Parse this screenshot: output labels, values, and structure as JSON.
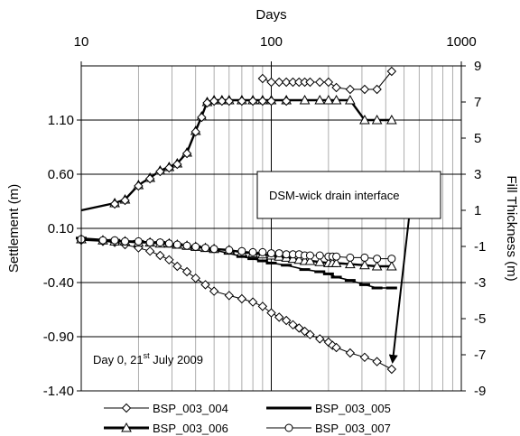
{
  "chart_data": {
    "type": "line",
    "x_scale": "log",
    "top_axis": {
      "label": "Days",
      "ticks": [
        10,
        100,
        1000
      ],
      "range": [
        10,
        1000
      ]
    },
    "left_axis": {
      "label": "Settlement (m)",
      "ticks": [
        "1.10",
        "0.60",
        "0.10",
        "-0.40",
        "-0.90",
        "-1.40"
      ],
      "range": [
        -1.4,
        1.6
      ]
    },
    "right_axis": {
      "label": "Fill Thickness (m)",
      "ticks": [
        "9",
        "7",
        "5",
        "3",
        "1",
        "-1",
        "-3",
        "-5",
        "-7",
        "-9"
      ],
      "range": [
        -9,
        9
      ]
    },
    "grid": true,
    "annotation": {
      "text": "DSM-wick drain interface",
      "arrow_to": [
        430,
        -1.2
      ]
    },
    "day_note": {
      "prefix": "Day 0, 21",
      "sup": "st",
      "suffix": " July 2009"
    },
    "legend_position": "bottom",
    "colors": {
      "line": "#000000",
      "background": "#ffffff"
    },
    "fill_series": {
      "x": [
        10,
        15,
        17,
        20,
        23,
        26,
        29,
        32,
        36,
        40,
        43,
        46,
        50,
        55,
        60,
        70,
        80,
        90,
        100,
        120,
        150,
        180,
        200,
        220,
        260,
        310,
        360,
        430
      ],
      "y_fill": [
        1.0,
        1.4,
        1.6,
        2.4,
        2.8,
        3.2,
        3.4,
        3.6,
        4.2,
        5.4,
        6.2,
        7.0,
        7.1,
        7.1,
        7.1,
        7.1,
        7.1,
        7.1,
        7.1,
        7.1,
        7.1,
        7.1,
        7.1,
        7.1,
        7.1,
        6.0,
        6.0,
        6.0
      ]
    },
    "fill_high": {
      "x": [
        90,
        100,
        110,
        120,
        130,
        140,
        150,
        160,
        180,
        200,
        220,
        260,
        310,
        360,
        430
      ],
      "y_fill": [
        8.3,
        8.1,
        8.1,
        8.1,
        8.1,
        8.1,
        8.1,
        8.1,
        8.1,
        8.1,
        7.8,
        7.7,
        7.7,
        7.7,
        8.7
      ]
    },
    "series": [
      {
        "name": "BSP_003_004",
        "marker": "diamond",
        "x": [
          10,
          13,
          15,
          17,
          20,
          23,
          26,
          29,
          32,
          36,
          40,
          45,
          50,
          60,
          70,
          80,
          90,
          100,
          110,
          120,
          130,
          140,
          150,
          160,
          180,
          200,
          210,
          220,
          260,
          310,
          360,
          430
        ],
        "y": [
          -0.01,
          -0.02,
          -0.03,
          -0.05,
          -0.08,
          -0.11,
          -0.15,
          -0.19,
          -0.25,
          -0.3,
          -0.36,
          -0.42,
          -0.48,
          -0.52,
          -0.55,
          -0.58,
          -0.62,
          -0.68,
          -0.72,
          -0.75,
          -0.79,
          -0.82,
          -0.85,
          -0.88,
          -0.92,
          -0.95,
          -0.98,
          -1.0,
          -1.05,
          -1.09,
          -1.13,
          -1.2
        ]
      },
      {
        "name": "BSP_003_005",
        "marker": "dash",
        "x": [
          10,
          15,
          20,
          26,
          32,
          40,
          50,
          60,
          70,
          80,
          90,
          100,
          120,
          150,
          180,
          200,
          220,
          260,
          310,
          360,
          430
        ],
        "y": [
          0.01,
          -0.01,
          -0.02,
          -0.03,
          -0.05,
          -0.07,
          -0.1,
          -0.13,
          -0.16,
          -0.18,
          -0.2,
          -0.22,
          -0.24,
          -0.28,
          -0.3,
          -0.32,
          -0.35,
          -0.38,
          -0.42,
          -0.45,
          -0.45
        ]
      },
      {
        "name": "BSP_003_006",
        "marker": "triangle",
        "x": [
          10,
          13,
          15,
          17,
          20,
          23,
          26,
          29,
          32,
          36,
          40,
          45,
          50,
          60,
          70,
          80,
          90,
          100,
          110,
          120,
          130,
          140,
          150,
          160,
          180,
          200,
          210,
          220,
          260,
          310,
          360,
          430
        ],
        "y": [
          0.0,
          -0.01,
          -0.02,
          -0.02,
          -0.03,
          -0.03,
          -0.04,
          -0.04,
          -0.05,
          -0.06,
          -0.07,
          -0.08,
          -0.09,
          -0.1,
          -0.12,
          -0.13,
          -0.14,
          -0.15,
          -0.16,
          -0.17,
          -0.18,
          -0.19,
          -0.2,
          -0.2,
          -0.21,
          -0.22,
          -0.22,
          -0.22,
          -0.23,
          -0.24,
          -0.25,
          -0.25
        ]
      },
      {
        "name": "BSP_003_007",
        "marker": "circle",
        "x": [
          10,
          13,
          15,
          17,
          20,
          23,
          26,
          29,
          32,
          36,
          40,
          45,
          50,
          60,
          70,
          80,
          90,
          100,
          110,
          120,
          130,
          140,
          150,
          160,
          180,
          200,
          210,
          220,
          260,
          310,
          360,
          430
        ],
        "y": [
          0.0,
          -0.01,
          -0.01,
          -0.02,
          -0.02,
          -0.03,
          -0.03,
          -0.04,
          -0.05,
          -0.06,
          -0.07,
          -0.08,
          -0.09,
          -0.1,
          -0.11,
          -0.12,
          -0.12,
          -0.13,
          -0.13,
          -0.14,
          -0.14,
          -0.14,
          -0.15,
          -0.15,
          -0.15,
          -0.16,
          -0.16,
          -0.16,
          -0.17,
          -0.17,
          -0.18,
          -0.18
        ]
      }
    ]
  }
}
